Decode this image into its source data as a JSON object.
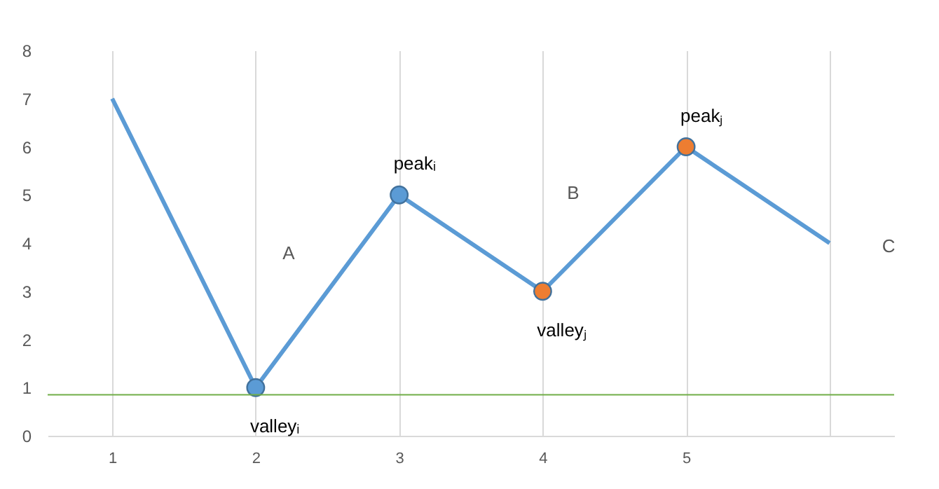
{
  "chart_data": {
    "type": "line",
    "categories": [
      "1",
      "2",
      "3",
      "4",
      "5",
      null
    ],
    "series": [
      {
        "color": "#5b9bd5",
        "values": [
          7,
          1,
          5,
          3,
          6,
          4
        ],
        "marker": "none"
      },
      {
        "type": "scatter",
        "color": "#5b9bd5",
        "x": [
          "2",
          "3"
        ],
        "values": [
          1,
          5
        ],
        "marker": "circle"
      },
      {
        "type": "scatter",
        "color": "#ed7d31",
        "x": [
          "4",
          "5"
        ],
        "values": [
          3,
          6
        ],
        "marker": "circle"
      }
    ],
    "ylim": [
      0,
      8
    ],
    "yticks": [
      0,
      1,
      2,
      3,
      4,
      5,
      6,
      7,
      8
    ],
    "grid": "x",
    "ref_lines": [
      {
        "axis": "y",
        "value": 0.85,
        "color": "#70ad47"
      }
    ],
    "annotations": [
      {
        "text": "valleyᵢ",
        "x": "2",
        "y": 1
      },
      {
        "text": "peakᵢ",
        "x": "3",
        "y": 5
      },
      {
        "text": "valleyⱼ",
        "x": "4",
        "y": 3
      },
      {
        "text": "peakⱼ",
        "x": "5",
        "y": 6
      },
      "A",
      "B",
      "C"
    ]
  }
}
